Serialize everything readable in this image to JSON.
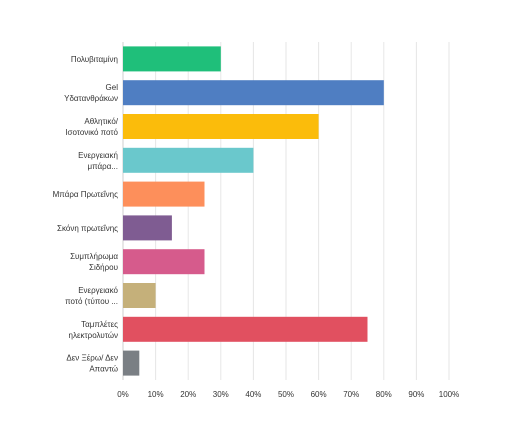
{
  "chart_data": {
    "type": "bar",
    "orientation": "horizontal",
    "categories": [
      [
        "Πολυβιταμίνη"
      ],
      [
        "Gel",
        "Υδατανθράκων"
      ],
      [
        "Αθλητικό/",
        "Ισοτονικό ποτό"
      ],
      [
        "Ενεργειακή",
        "μπάρα..."
      ],
      [
        "Μπάρα Πρωτεΐνης"
      ],
      [
        "Σκόνη πρωτεΐνης"
      ],
      [
        "Συμπλήρωμα",
        "Σιδήρου"
      ],
      [
        "Ενεργειακό",
        "ποτό (τύπου ..."
      ],
      [
        "Ταμπλέτες",
        "ηλεκτρολυτών"
      ],
      [
        "Δεν Ξέρω/ Δεν",
        "Απαντώ"
      ]
    ],
    "values": [
      30,
      80,
      60,
      40,
      25,
      15,
      25,
      10,
      75,
      5
    ],
    "colors": [
      "#1fbf7a",
      "#4f7ec2",
      "#fbbc0b",
      "#6ac8cc",
      "#fd8f5b",
      "#7f5c92",
      "#d65b8c",
      "#c5b07a",
      "#e15060",
      "#7a7f84"
    ],
    "xlim": [
      0,
      100
    ],
    "xticks": [
      "0%",
      "10%",
      "20%",
      "30%",
      "40%",
      "50%",
      "60%",
      "70%",
      "80%",
      "90%",
      "100%"
    ],
    "grid": true,
    "title": "",
    "xlabel": "",
    "ylabel": ""
  }
}
